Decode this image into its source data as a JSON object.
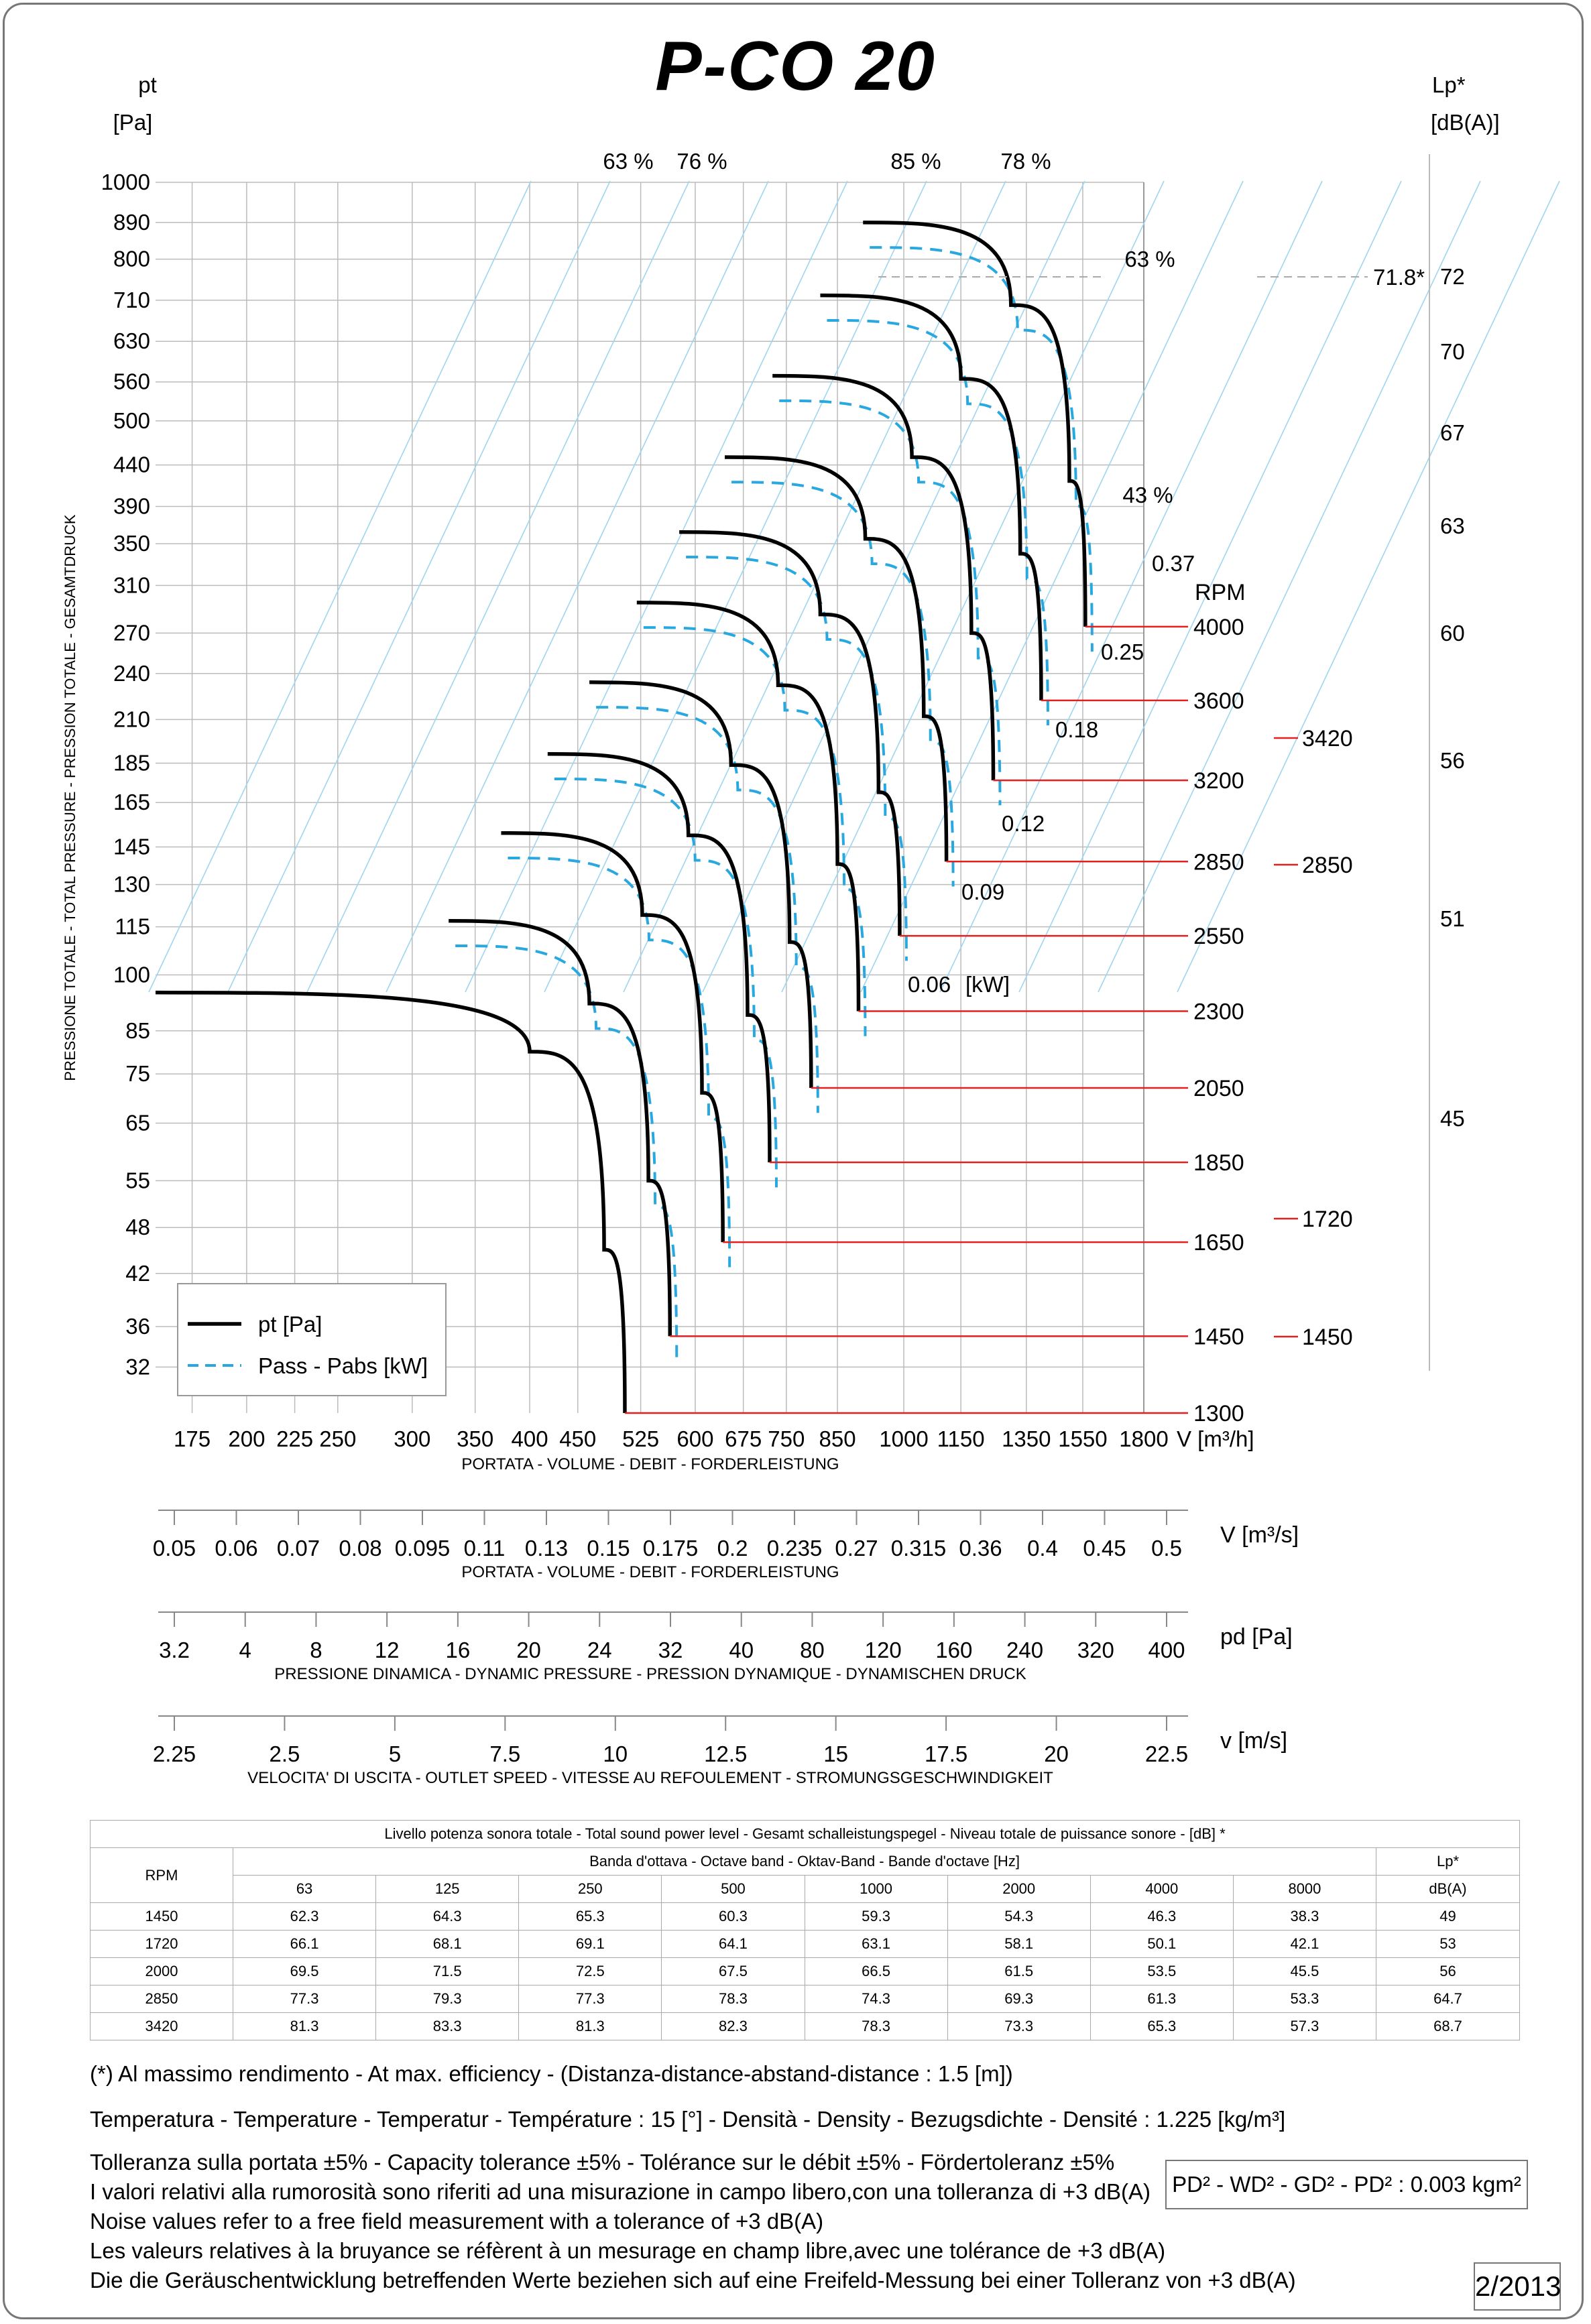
{
  "title": "P-CO 20",
  "chart_data": {
    "type": "line",
    "y_axis": {
      "label": "pt",
      "unit": "[Pa]",
      "side_label": "PRESSIONE TOTALE - TOTAL PRESSURE - PRESSION TOTALE - GESAMTDRUCK",
      "scale": "log",
      "ticks": [
        "1000",
        "890",
        "800",
        "710",
        "630",
        "560",
        "500",
        "440",
        "390",
        "350",
        "310",
        "270",
        "240",
        "210",
        "185",
        "165",
        "145",
        "130",
        "115",
        "100",
        "85",
        "75",
        "65",
        "55",
        "48",
        "42",
        "36",
        "32"
      ],
      "tick_values": [
        1000,
        890,
        800,
        710,
        630,
        560,
        500,
        440,
        390,
        350,
        310,
        270,
        240,
        210,
        185,
        165,
        145,
        130,
        115,
        100,
        85,
        75,
        65,
        55,
        48,
        42,
        36,
        32
      ]
    },
    "x_axis": {
      "label": "V [m³/h]",
      "caption": "PORTATA - VOLUME - DEBIT - FORDERLEISTUNG",
      "scale": "log",
      "ticks": [
        "175",
        "200",
        "225",
        "250",
        "300",
        "350",
        "400",
        "450",
        "525",
        "600",
        "675",
        "750",
        "850",
        "1000",
        "1150",
        "1350",
        "1550",
        "1800"
      ],
      "tick_values": [
        175,
        200,
        225,
        250,
        300,
        350,
        400,
        450,
        525,
        600,
        675,
        750,
        850,
        1000,
        1150,
        1350,
        1550,
        1800
      ]
    },
    "right_axis": {
      "label": "Lp*",
      "unit": "[dB(A)]",
      "ticks": [
        "72",
        "70",
        "67",
        "63",
        "60",
        "56",
        "51",
        "45"
      ],
      "tick_values": [
        72,
        70,
        67,
        63,
        60,
        56,
        51,
        45
      ],
      "mark_value": "71.8*"
    },
    "efficiency_labels": [
      "63 %",
      "76 %",
      "85 %",
      "78 %",
      "63 %",
      "43 %"
    ],
    "power_labels": [
      "0.37",
      "0.25",
      "0.18",
      "0.12",
      "0.09",
      "0.06",
      "[kW]"
    ],
    "rpm_header": "RPM",
    "series": [
      {
        "rpm": "4000",
        "points": [
          [
            905,
            890
          ],
          [
            1300,
            700
          ],
          [
            1500,
            420
          ],
          [
            1560,
            275
          ]
        ]
      },
      {
        "rpm": "3600",
        "points": [
          [
            815,
            720
          ],
          [
            1150,
            565
          ],
          [
            1330,
            340
          ],
          [
            1400,
            222
          ]
        ]
      },
      {
        "rpm": "3200",
        "points": [
          [
            725,
            570
          ],
          [
            1020,
            450
          ],
          [
            1180,
            270
          ],
          [
            1245,
            176
          ]
        ]
      },
      {
        "rpm": "2850",
        "points": [
          [
            645,
            450
          ],
          [
            910,
            355
          ],
          [
            1050,
            212
          ],
          [
            1110,
            139
          ]
        ]
      },
      {
        "rpm": "2550",
        "points": [
          [
            577,
            362
          ],
          [
            815,
            285
          ],
          [
            940,
            170
          ],
          [
            990,
            112
          ]
        ]
      },
      {
        "rpm": "2300",
        "points": [
          [
            520,
            295
          ],
          [
            735,
            232
          ],
          [
            850,
            138
          ],
          [
            895,
            90
          ]
        ]
      },
      {
        "rpm": "2050",
        "points": [
          [
            463,
            234
          ],
          [
            655,
            184
          ],
          [
            756,
            110
          ],
          [
            797,
            72
          ]
        ]
      },
      {
        "rpm": "1850",
        "points": [
          [
            418,
            190
          ],
          [
            590,
            150
          ],
          [
            682,
            89
          ],
          [
            720,
            58
          ]
        ]
      },
      {
        "rpm": "1650",
        "points": [
          [
            373,
            151
          ],
          [
            527,
            119
          ],
          [
            610,
            71
          ],
          [
            642,
            46
          ]
        ]
      },
      {
        "rpm": "1450",
        "points": [
          [
            328,
            117
          ],
          [
            463,
            92
          ],
          [
            535,
            55
          ],
          [
            564,
            35
          ]
        ]
      },
      {
        "rpm": "1300",
        "points": [
          [
            160,
            95
          ],
          [
            400,
            80
          ],
          [
            480,
            45
          ],
          [
            505,
            28
          ]
        ]
      }
    ],
    "rpm_extra": [
      "3420",
      "2850",
      "1720",
      "1450"
    ],
    "legend": [
      "pt [Pa]",
      "Pass - Pabs [kW]"
    ]
  },
  "scales": [
    {
      "unit": "V  [m³/s]",
      "caption": "PORTATA - VOLUME - DEBIT - FORDERLEISTUNG",
      "ticks": [
        "0.05",
        "0.06",
        "0.07",
        "0.08",
        "0.095",
        "0.11",
        "0.13",
        "0.15",
        "0.175",
        "0.2",
        "0.235",
        "0.27",
        "0.315",
        "0.36",
        "0.4",
        "0.45",
        "0.5"
      ]
    },
    {
      "unit": "pd  [Pa]",
      "caption": "PRESSIONE DINAMICA - DYNAMIC PRESSURE - PRESSION DYNAMIQUE - DYNAMISCHEN DRUCK",
      "ticks": [
        "3.2",
        "4",
        "8",
        "12",
        "16",
        "20",
        "24",
        "32",
        "40",
        "80",
        "120",
        "160",
        "240",
        "320",
        "400"
      ]
    },
    {
      "unit": "v  [m/s]",
      "caption": "VELOCITA' DI USCITA - OUTLET SPEED - VITESSE AU REFOULEMENT - STROMUNGSGESCHWINDIGKEIT",
      "ticks": [
        "2.25",
        "2.5",
        "5",
        "7.5",
        "10",
        "12.5",
        "15",
        "17.5",
        "20",
        "22.5"
      ]
    }
  ],
  "sound_table": {
    "title": "Livello potenza sonora totale - Total sound power level - Gesamt schalleistungspegel - Niveau totale de puissance sonore - [dB]   *",
    "band_header": "Banda d'ottava - Octave band - Oktav-Band - Bande d'octave [Hz]",
    "rpm_header": "RPM",
    "lp_header": "Lp*",
    "lp_unit": "dB(A)",
    "bands": [
      "63",
      "125",
      "250",
      "500",
      "1000",
      "2000",
      "4000",
      "8000"
    ],
    "rows": [
      {
        "rpm": "1450",
        "values": [
          "62.3",
          "64.3",
          "65.3",
          "60.3",
          "59.3",
          "54.3",
          "46.3",
          "38.3"
        ],
        "lp": "49"
      },
      {
        "rpm": "1720",
        "values": [
          "66.1",
          "68.1",
          "69.1",
          "64.1",
          "63.1",
          "58.1",
          "50.1",
          "42.1"
        ],
        "lp": "53"
      },
      {
        "rpm": "2000",
        "values": [
          "69.5",
          "71.5",
          "72.5",
          "67.5",
          "66.5",
          "61.5",
          "53.5",
          "45.5"
        ],
        "lp": "56"
      },
      {
        "rpm": "2850",
        "values": [
          "77.3",
          "79.3",
          "77.3",
          "78.3",
          "74.3",
          "69.3",
          "61.3",
          "53.3"
        ],
        "lp": "64.7"
      },
      {
        "rpm": "3420",
        "values": [
          "81.3",
          "83.3",
          "81.3",
          "82.3",
          "78.3",
          "73.3",
          "65.3",
          "57.3"
        ],
        "lp": "68.7"
      }
    ]
  },
  "notes": {
    "max_eff": "(*) Al massimo rendimento - At max. efficiency - (Distanza-distance-abstand-distance : 1.5 [m])",
    "temperature": "Temperatura - Temperature - Temperatur - Température : 15 [°]  -  Densità - Density - Bezugsdichte - Densité : 1.225 [kg/m³]",
    "lines": [
      "Tolleranza sulla portata  ±5% - Capacity tolerance ±5% - Tolérance sur le débit ±5% - Fördertoleranz ±5%",
      "I valori relativi alla rumorosità sono riferiti ad una misurazione in campo libero,con una tolleranza di +3 dB(A)",
      "Noise values refer to a free field measurement with a tolerance of +3 dB(A)",
      "Les valeurs relatives à la bruyance se réfèrent à un mesurage en champ libre,avec une tolérance de +3 dB(A)",
      "Die die Geräuschentwicklung betreffenden Werte beziehen sich auf eine Freifeld-Messung bei einer Tolleranz von +3 dB(A)"
    ],
    "pd_box": "PD² -  WD² - GD² -  PD²  :  0.003 kgm²",
    "date": "2/2013"
  }
}
